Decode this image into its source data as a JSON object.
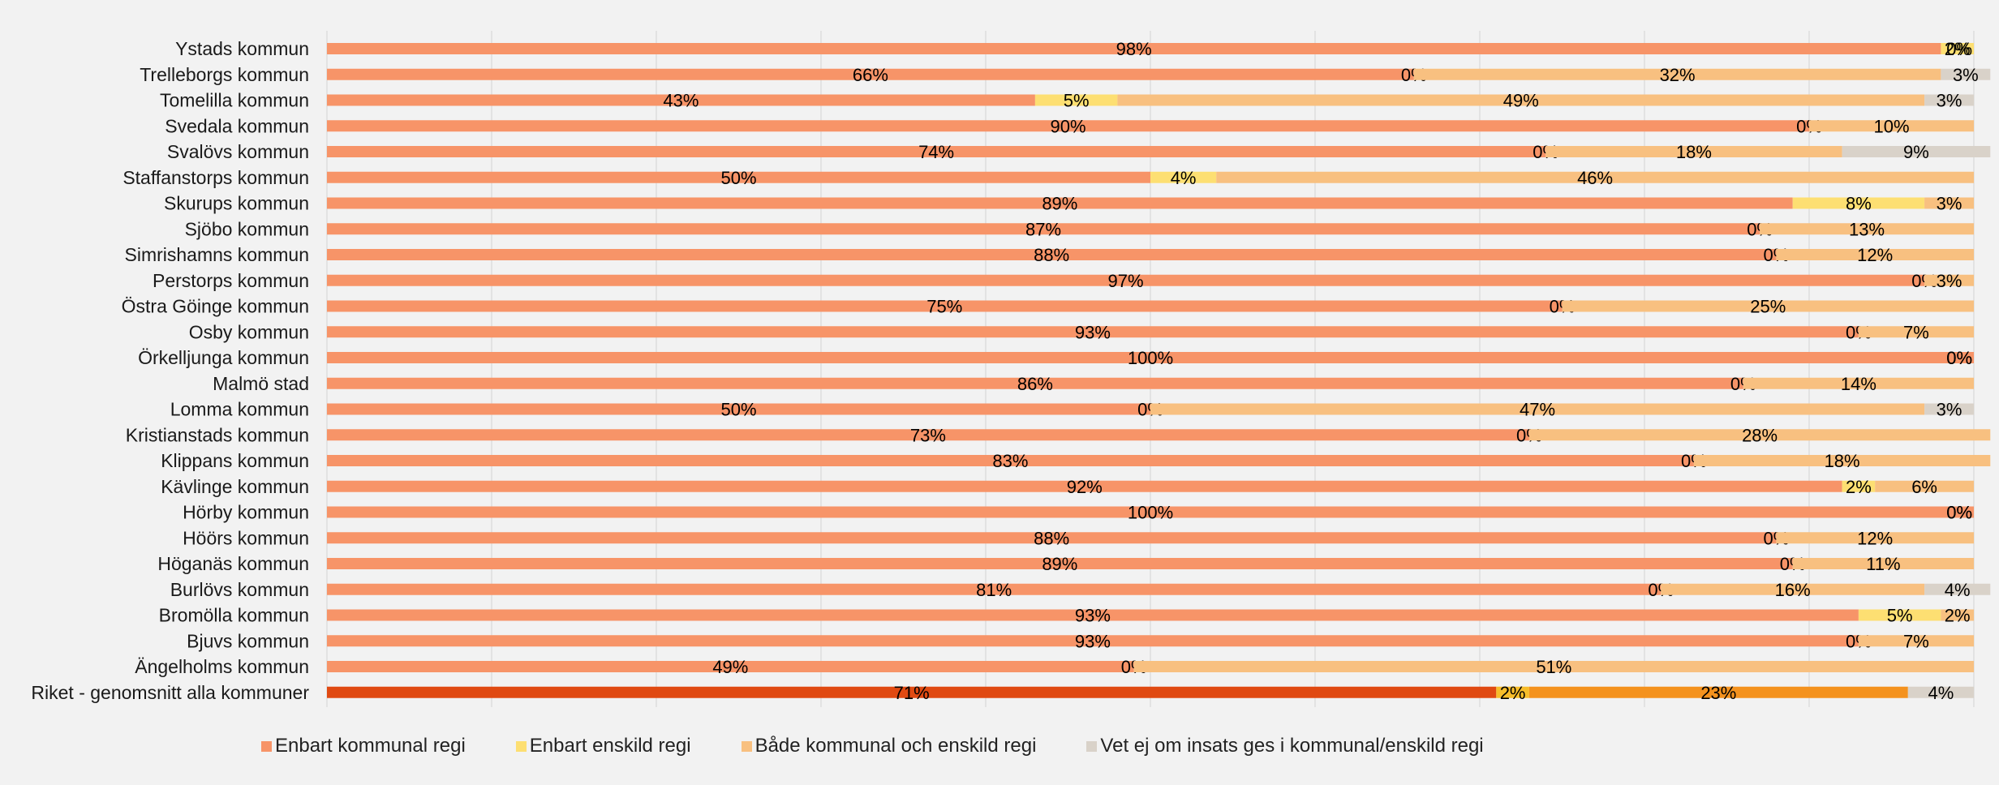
{
  "chart_data": {
    "type": "bar",
    "orientation": "horizontal",
    "stacked": true,
    "percent_stacked": true,
    "categories": [
      "Ystads kommun",
      "Trelleborgs kommun",
      "Tomelilla kommun",
      "Svedala kommun",
      "Svalövs kommun",
      "Staffanstorps kommun",
      "Skurups kommun",
      "Sjöbo kommun",
      "Simrishamns kommun",
      "Perstorps kommun",
      "Östra Göinge kommun",
      "Osby kommun",
      "Örkelljunga kommun",
      "Malmö stad",
      "Lomma kommun",
      "Kristianstads kommun",
      "Klippans kommun",
      "Kävlinge kommun",
      "Hörby kommun",
      "Höörs kommun",
      "Höganäs kommun",
      "Burlövs kommun",
      "Bromölla kommun",
      "Bjuvs kommun",
      "Ängelholms kommun",
      "Riket - genomsnitt alla kommuner"
    ],
    "series": [
      {
        "name": "Enbart kommunal regi",
        "color": "#f79468",
        "values": [
          98,
          66,
          43,
          90,
          74,
          50,
          89,
          87,
          88,
          97,
          75,
          93,
          100,
          86,
          50,
          73,
          83,
          92,
          100,
          88,
          89,
          81,
          93,
          93,
          49,
          71
        ]
      },
      {
        "name": "Enbart enskild regi",
        "color": "#fddf72",
        "values": [
          2,
          0,
          5,
          0,
          0,
          4,
          8,
          0,
          0,
          0,
          0,
          0,
          0,
          0,
          0,
          0,
          0,
          2,
          0,
          0,
          0,
          0,
          5,
          0,
          0,
          2
        ]
      },
      {
        "name": "Både kommunal och enskild regi",
        "color": "#f8c080",
        "values": [
          0,
          32,
          49,
          10,
          18,
          46,
          3,
          13,
          12,
          3,
          25,
          7,
          0,
          14,
          47,
          28,
          18,
          6,
          0,
          12,
          11,
          16,
          2,
          7,
          51,
          23
        ]
      },
      {
        "name": "Vet ej om insats ges i kommunal/enskild regi",
        "color": "#d9d2c9",
        "values": [
          0,
          3,
          3,
          0,
          9,
          0,
          0,
          0,
          0,
          0,
          0,
          0,
          0,
          0,
          3,
          0,
          0,
          0,
          0,
          0,
          0,
          4,
          0,
          0,
          0,
          4
        ]
      }
    ],
    "highlight_row": {
      "category": "Riket - genomsnitt alla kommuner",
      "colors": [
        "#e04a12",
        "#f7bd2a",
        "#f4921e",
        "#d9d2c9"
      ]
    },
    "data_label_format": "percent",
    "xlim": [
      0,
      100
    ],
    "grid": true,
    "legend_position": "bottom"
  }
}
